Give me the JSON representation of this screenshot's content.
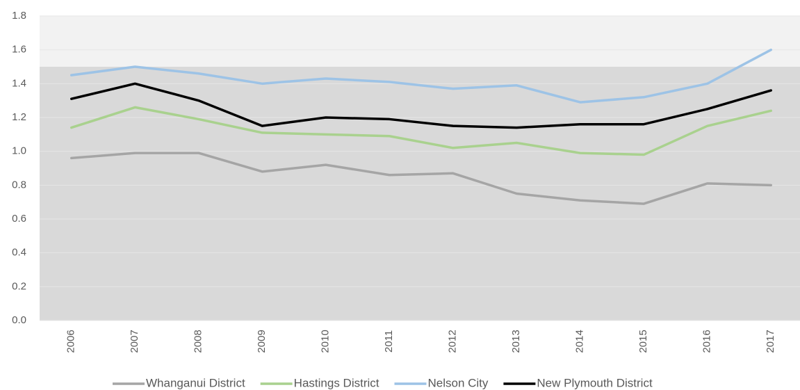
{
  "chart_data": {
    "type": "line",
    "categories": [
      "2006",
      "2007",
      "2008",
      "2009",
      "2010",
      "2011",
      "2012",
      "2013",
      "2014",
      "2015",
      "2016",
      "2017"
    ],
    "series": [
      {
        "name": "Whanganui District",
        "color": "#a5a5a5",
        "values": [
          0.96,
          0.99,
          0.99,
          0.88,
          0.92,
          0.86,
          0.87,
          0.75,
          0.71,
          0.69,
          0.81,
          0.8
        ]
      },
      {
        "name": "Hastings District",
        "color": "#a9d18e",
        "values": [
          1.14,
          1.26,
          1.19,
          1.11,
          1.1,
          1.09,
          1.02,
          1.05,
          0.99,
          0.98,
          1.15,
          1.24
        ]
      },
      {
        "name": "Nelson City",
        "color": "#9dc3e6",
        "values": [
          1.45,
          1.5,
          1.46,
          1.4,
          1.43,
          1.41,
          1.37,
          1.39,
          1.29,
          1.32,
          1.4,
          1.6
        ]
      },
      {
        "name": "New Plymouth District",
        "color": "#000000",
        "values": [
          1.31,
          1.4,
          1.3,
          1.15,
          1.2,
          1.19,
          1.15,
          1.14,
          1.16,
          1.16,
          1.25,
          1.36
        ]
      }
    ],
    "ylim": [
      0,
      1.8
    ],
    "yticks": [
      {
        "value": 0,
        "label": "0.0"
      },
      0.2,
      0.4,
      0.6,
      0.8,
      {
        "value": 1,
        "label": "1.0"
      },
      1.2,
      1.4,
      1.6,
      1.8
    ],
    "grid": true,
    "plot_background": "#f2f2f2",
    "band": {
      "from": 0,
      "to": 1.5,
      "color": "#d9d9d9"
    },
    "legend": "bottom"
  }
}
